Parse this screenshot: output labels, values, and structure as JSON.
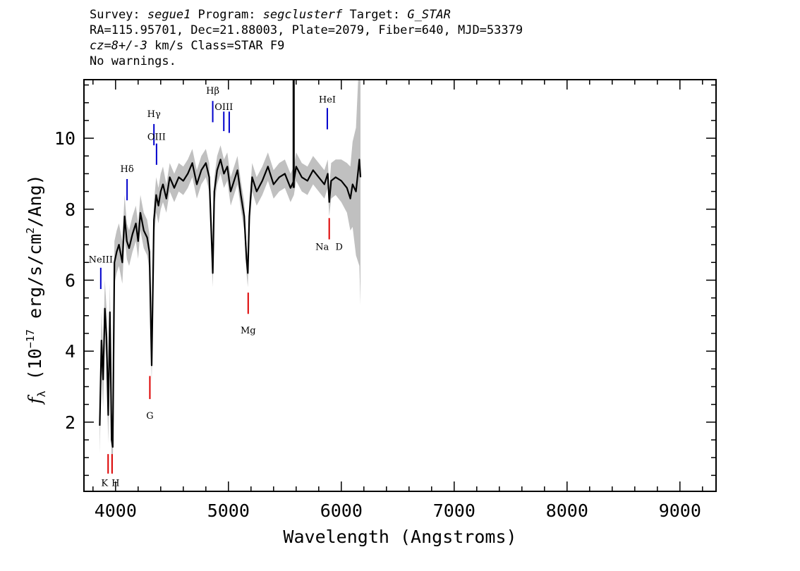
{
  "header": {
    "survey_label": "Survey: ",
    "survey": "segue1",
    "program_label": " Program: ",
    "program": "segclusterf",
    "target_label": " Target: ",
    "target": "G_STAR",
    "line2": "RA=115.95701, Dec=21.88003, Plate=2079, Fiber=640, MJD=53379",
    "cz_label": "cz",
    "cz_value": "=8+/-3",
    "line3_rest": " km/s Class=STAR F9",
    "line4": "No warnings."
  },
  "chart_data": {
    "type": "line",
    "xlabel": "Wavelength (Angstroms)",
    "ylabel": "f_λ (10^-17 erg/s/cm^2/Ang)",
    "ylabel_parts": {
      "f": "f",
      "sub": "λ",
      "pre": " (10",
      "exp1": "−17",
      "mid": " erg/s/cm",
      "exp2": "2",
      "post": "/Ang)"
    },
    "xlim": [
      3720,
      9320
    ],
    "ylim": [
      0.05,
      11.65
    ],
    "x_ticks": [
      4000,
      5000,
      6000,
      7000,
      8000,
      9000
    ],
    "x_tick_labels": [
      "4000",
      "5000",
      "6000",
      "7000",
      "8000",
      "9000"
    ],
    "y_ticks": [
      2,
      4,
      6,
      8,
      10
    ],
    "y_tick_labels": [
      "2",
      "4",
      "6",
      "8",
      "10"
    ],
    "grid": false,
    "colors": {
      "flux": "#000000",
      "error": "#c0c0c0",
      "emission": "#0000cc",
      "absorption": "#dd0000"
    },
    "series": [
      {
        "x": [
          3860,
          3875,
          3890,
          3905,
          3920,
          3935,
          3950,
          3965,
          3975,
          3990,
          4010,
          4030,
          4060,
          4080,
          4100,
          4120,
          4150,
          4180,
          4200,
          4220,
          4250,
          4280,
          4300,
          4320,
          4340,
          4360,
          4380,
          4400,
          4420,
          4450,
          4480,
          4520,
          4560,
          4600,
          4640,
          4680,
          4720,
          4760,
          4800,
          4830,
          4850,
          4861,
          4875,
          4900,
          4930,
          4960,
          4990,
          5020,
          5050,
          5080,
          5110,
          5140,
          5160,
          5172,
          5185,
          5210,
          5250,
          5300,
          5350,
          5400,
          5450,
          5500,
          5550,
          5580,
          5600,
          5650,
          5700,
          5750,
          5800,
          5850,
          5880,
          5893,
          5910,
          5950,
          6000,
          6050,
          6080,
          6100,
          6130,
          6160,
          6170
        ],
        "y": [
          1.9,
          4.3,
          3.2,
          5.2,
          4.4,
          2.2,
          5.1,
          1.5,
          1.3,
          6.5,
          6.8,
          7.0,
          6.5,
          7.8,
          7.1,
          6.9,
          7.3,
          7.6,
          7.1,
          7.9,
          7.4,
          7.2,
          6.8,
          3.6,
          7.7,
          8.4,
          8.1,
          8.5,
          8.7,
          8.3,
          8.9,
          8.6,
          8.9,
          8.8,
          9.0,
          9.3,
          8.7,
          9.1,
          9.3,
          8.9,
          7.2,
          6.2,
          8.5,
          9.1,
          9.4,
          9.0,
          9.2,
          8.5,
          8.8,
          9.1,
          8.4,
          7.8,
          6.6,
          6.2,
          7.8,
          8.9,
          8.5,
          8.8,
          9.2,
          8.7,
          8.9,
          9.0,
          8.6,
          8.8,
          9.2,
          8.9,
          8.8,
          9.1,
          8.9,
          8.7,
          9.0,
          8.2,
          8.8,
          8.9,
          8.8,
          8.6,
          8.3,
          8.7,
          8.5,
          9.4,
          8.9
        ],
        "error": [
          0.8,
          0.8,
          0.8,
          0.8,
          0.8,
          0.8,
          0.8,
          0.8,
          0.8,
          0.6,
          0.6,
          0.6,
          0.6,
          0.6,
          0.5,
          0.5,
          0.5,
          0.5,
          0.5,
          0.5,
          0.5,
          0.5,
          0.5,
          0.5,
          0.5,
          0.5,
          0.5,
          0.5,
          0.5,
          0.4,
          0.4,
          0.4,
          0.4,
          0.4,
          0.4,
          0.4,
          0.4,
          0.4,
          0.4,
          0.4,
          0.4,
          0.4,
          0.4,
          0.4,
          0.4,
          0.4,
          0.4,
          0.4,
          0.4,
          0.4,
          0.4,
          0.4,
          0.4,
          0.4,
          0.4,
          0.4,
          0.4,
          0.4,
          0.4,
          0.4,
          0.4,
          0.4,
          0.4,
          0.4,
          0.4,
          0.4,
          0.4,
          0.4,
          0.4,
          0.4,
          0.4,
          0.4,
          0.5,
          0.5,
          0.6,
          0.7,
          0.9,
          1.2,
          1.8,
          3.0,
          3.6
        ]
      }
    ],
    "spike": {
      "x": 5578,
      "y_top": 11.65,
      "y_bottom": 8.6
    },
    "emission_lines": [
      {
        "label": "NeIII",
        "x": 3869,
        "y1": 5.75,
        "y2": 6.35,
        "label_y": 6.5
      },
      {
        "label": "Hδ",
        "x": 4102,
        "y1": 8.25,
        "y2": 8.85,
        "label_y": 9.05
      },
      {
        "label": "Hγ",
        "x": 4340,
        "y1": 9.8,
        "y2": 10.4,
        "label_y": 10.6
      },
      {
        "label": "OIII",
        "x": 4363,
        "y1": 9.25,
        "y2": 9.85,
        "label_y": 9.95
      },
      {
        "label": "Hβ",
        "x": 4861,
        "y1": 10.45,
        "y2": 11.05,
        "label_y": 11.25
      },
      {
        "label": "OIII",
        "x": 4959,
        "y1": 10.2,
        "y2": 10.75,
        "label_y": 10.8
      },
      {
        "label": "",
        "x": 5007,
        "y1": 10.15,
        "y2": 10.75,
        "label_y": 0
      },
      {
        "label": "HeI",
        "x": 5876,
        "y1": 10.25,
        "y2": 10.85,
        "label_y": 11.0
      }
    ],
    "absorption_lines": [
      {
        "label": "K",
        "x": 3934,
        "y1": 0.55,
        "y2": 1.1,
        "label_y": 0.2,
        "label_dx": -5
      },
      {
        "label": "H",
        "x": 3969,
        "y1": 0.55,
        "y2": 1.1,
        "label_y": 0.2,
        "label_dx": 5
      },
      {
        "label": "G",
        "x": 4304,
        "y1": 2.65,
        "y2": 3.3,
        "label_y": 2.1,
        "label_dx": 0
      },
      {
        "label": "Mg",
        "x": 5175,
        "y1": 5.05,
        "y2": 5.65,
        "label_y": 4.5,
        "label_dx": 0
      },
      {
        "label": "Na",
        "x": 5893,
        "y1": 7.15,
        "y2": 7.75,
        "label_y": 6.85,
        "label_dx": -10
      },
      {
        "label": "D",
        "x": 5893,
        "y1": 0,
        "y2": 0,
        "label_y": 6.85,
        "label_dx": 14
      }
    ]
  }
}
